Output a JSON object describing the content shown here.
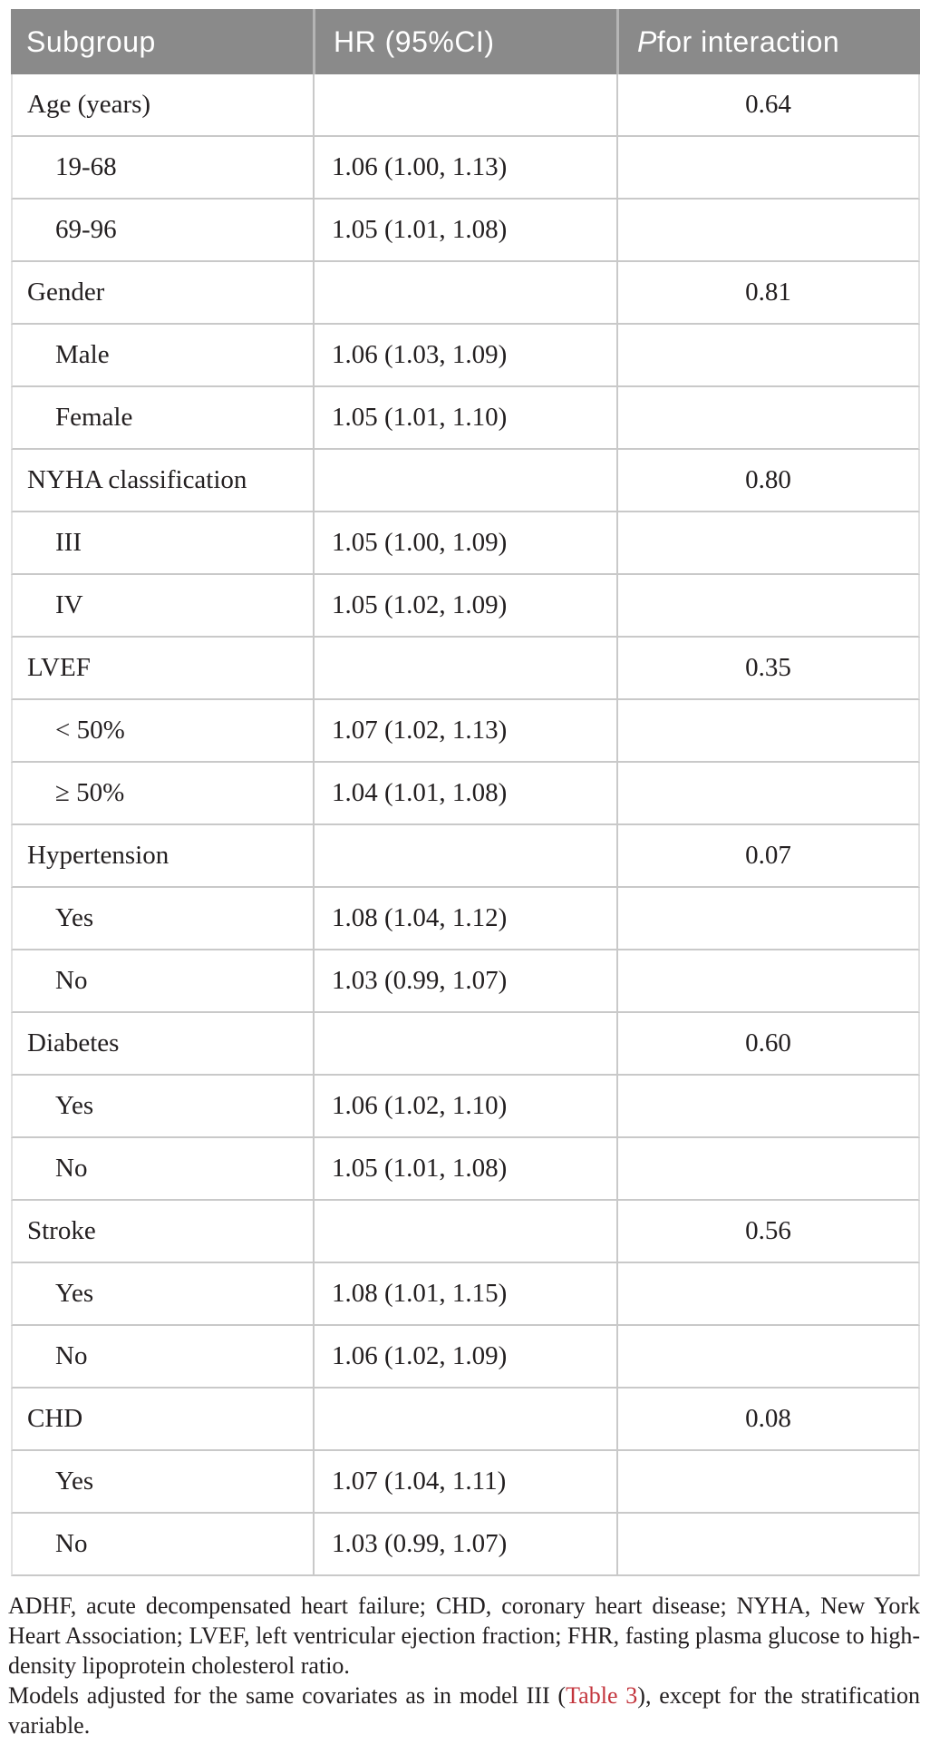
{
  "header": {
    "col1": "Subgroup",
    "col2": "HR (95%CI)",
    "col3_italic": "P",
    "col3_rest": " for interaction"
  },
  "rows": [
    {
      "label": "Age (years)",
      "indent": false,
      "hr": "",
      "p": "0.64"
    },
    {
      "label": "19-68",
      "indent": true,
      "hr": "1.06 (1.00, 1.13)",
      "p": ""
    },
    {
      "label": "69-96",
      "indent": true,
      "hr": "1.05 (1.01, 1.08)",
      "p": ""
    },
    {
      "label": "Gender",
      "indent": false,
      "hr": "",
      "p": "0.81"
    },
    {
      "label": "Male",
      "indent": true,
      "hr": "1.06 (1.03, 1.09)",
      "p": ""
    },
    {
      "label": "Female",
      "indent": true,
      "hr": "1.05 (1.01, 1.10)",
      "p": ""
    },
    {
      "label": "NYHA classification",
      "indent": false,
      "hr": "",
      "p": "0.80"
    },
    {
      "label": "III",
      "indent": true,
      "hr": "1.05 (1.00, 1.09)",
      "p": ""
    },
    {
      "label": "IV",
      "indent": true,
      "hr": "1.05 (1.02, 1.09)",
      "p": ""
    },
    {
      "label": "LVEF",
      "indent": false,
      "hr": "",
      "p": "0.35"
    },
    {
      "label": "< 50%",
      "indent": true,
      "hr": "1.07 (1.02, 1.13)",
      "p": ""
    },
    {
      "label": "≥ 50%",
      "indent": true,
      "hr": "1.04 (1.01, 1.08)",
      "p": ""
    },
    {
      "label": "Hypertension",
      "indent": false,
      "hr": "",
      "p": "0.07"
    },
    {
      "label": "Yes",
      "indent": true,
      "hr": "1.08 (1.04, 1.12)",
      "p": ""
    },
    {
      "label": "No",
      "indent": true,
      "hr": "1.03 (0.99, 1.07)",
      "p": ""
    },
    {
      "label": "Diabetes",
      "indent": false,
      "hr": "",
      "p": "0.60"
    },
    {
      "label": "Yes",
      "indent": true,
      "hr": "1.06 (1.02, 1.10)",
      "p": ""
    },
    {
      "label": "No",
      "indent": true,
      "hr": "1.05 (1.01, 1.08)",
      "p": ""
    },
    {
      "label": "Stroke",
      "indent": false,
      "hr": "",
      "p": "0.56"
    },
    {
      "label": "Yes",
      "indent": true,
      "hr": "1.08 (1.01, 1.15)",
      "p": ""
    },
    {
      "label": "No",
      "indent": true,
      "hr": "1.06 (1.02, 1.09)",
      "p": ""
    },
    {
      "label": "CHD",
      "indent": false,
      "hr": "",
      "p": "0.08"
    },
    {
      "label": "Yes",
      "indent": true,
      "hr": "1.07 (1.04, 1.11)",
      "p": ""
    },
    {
      "label": "No",
      "indent": true,
      "hr": "1.03 (0.99, 1.07)",
      "p": ""
    }
  ],
  "footnote": {
    "abbrev": "ADHF, acute decompensated heart failure; CHD, coronary heart disease; NYHA, New York Heart Association; LVEF, left ventricular ejection fraction; FHR, fasting plasma glucose to high-density lipoprotein cholesterol ratio.",
    "models_before": "Models adjusted for the same covariates as in model III (",
    "models_link": "Table 3",
    "models_after": "), except for the stratification variable."
  },
  "colors": {
    "header_bg": "#8a8a8a",
    "header_text": "#ffffff",
    "body_text": "#231f20",
    "divider": "#c9c9c9",
    "link_red": "#c3343c"
  }
}
